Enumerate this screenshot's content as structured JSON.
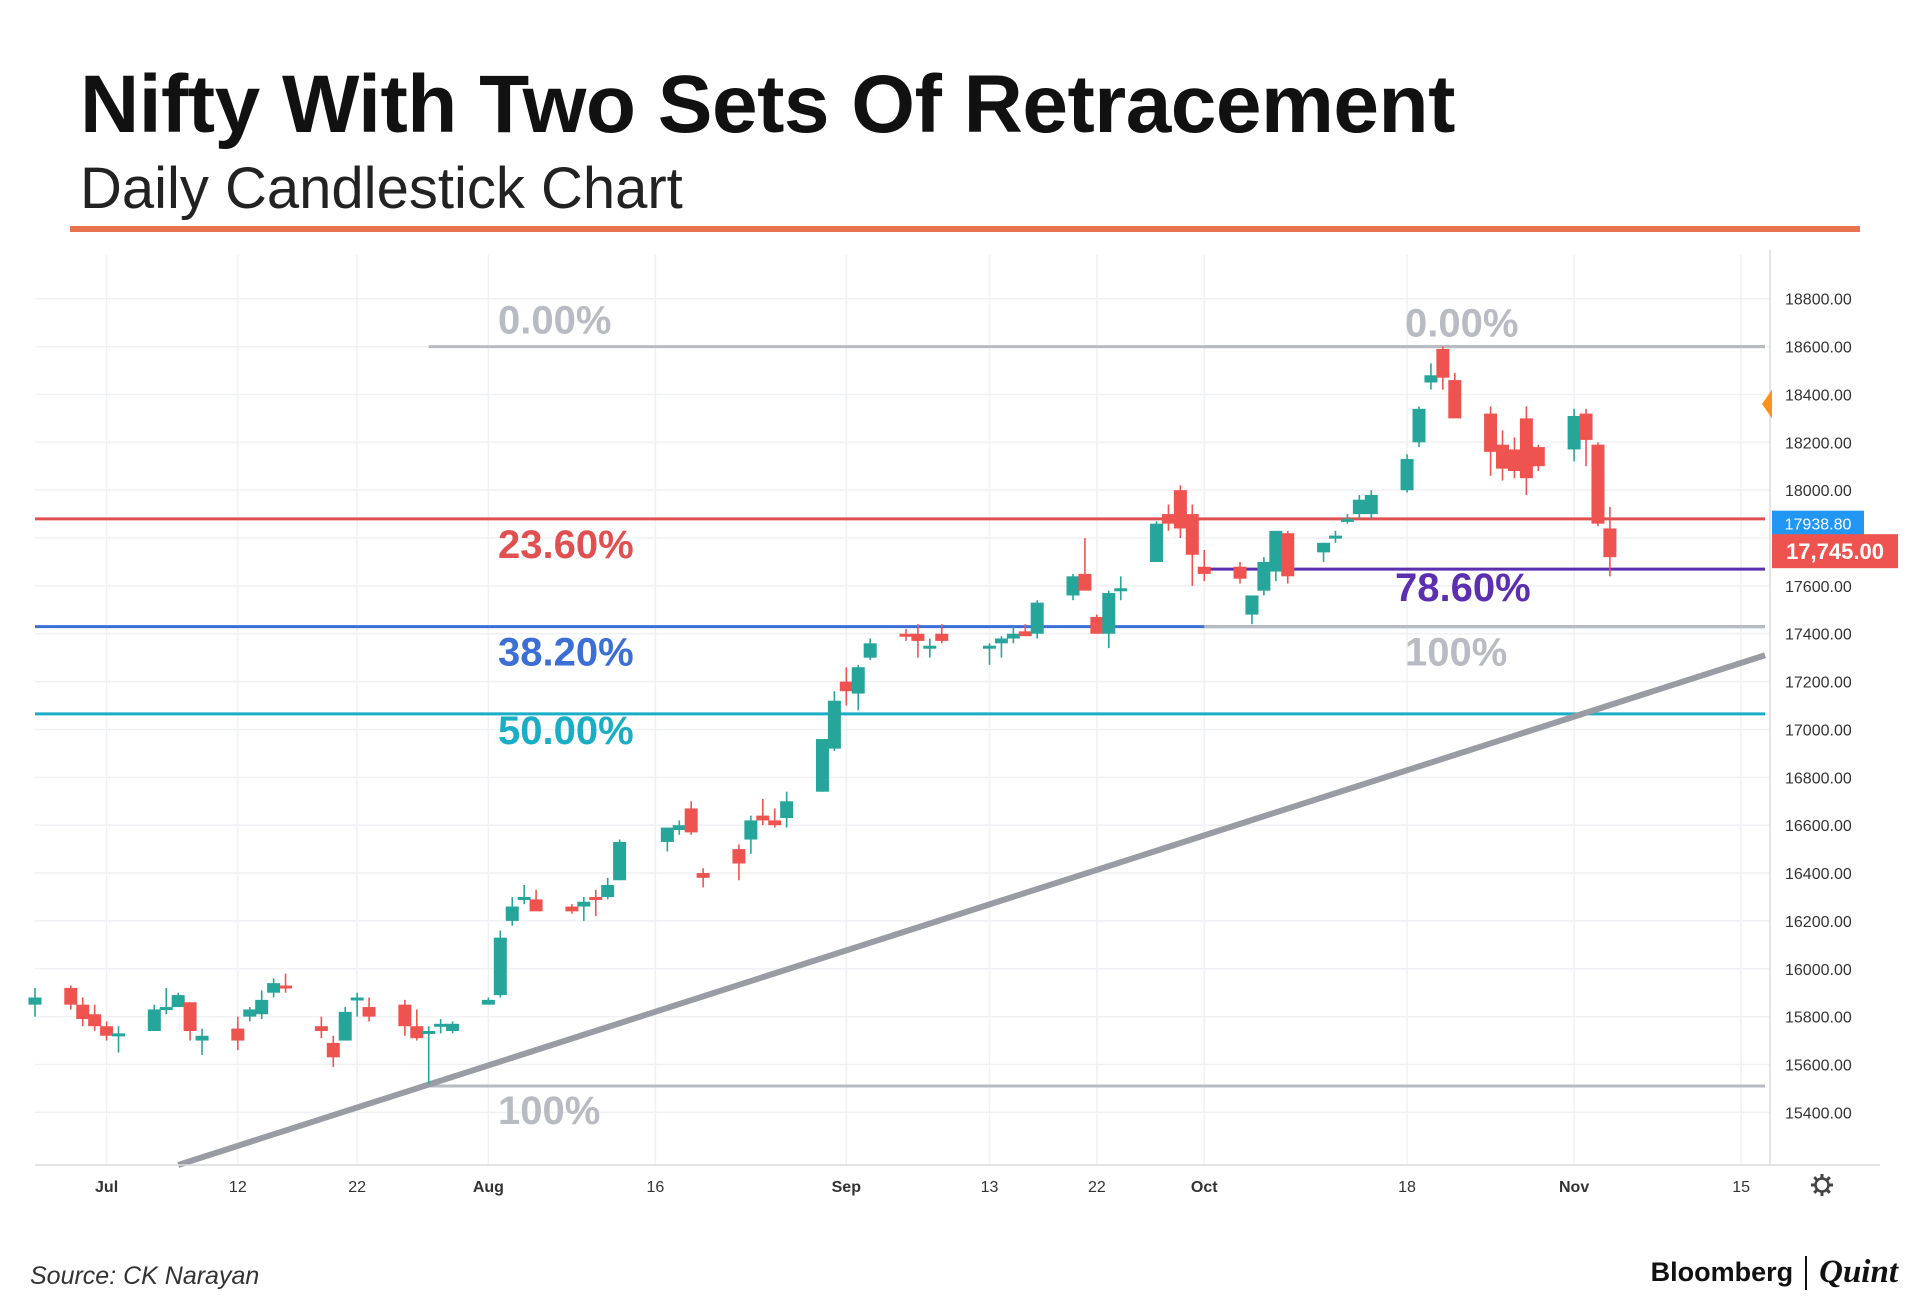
{
  "header": {
    "title": "Nifty With Two Sets Of Retracement",
    "subtitle": "Daily Candlestick Chart",
    "accent_color": "#e8734f"
  },
  "footer": {
    "source": "Source: CK Narayan",
    "brand_left": "Bloomberg",
    "brand_right": "Quint"
  },
  "chart_data": {
    "type": "candlestick",
    "title": "Nifty With Two Sets Of Retracement",
    "subtitle": "Daily Candlestick Chart",
    "x_ticks": [
      {
        "label": "Jul",
        "date": "2021-07-01"
      },
      {
        "label": "12",
        "date": "2021-07-12"
      },
      {
        "label": "22",
        "date": "2021-07-22"
      },
      {
        "label": "Aug",
        "date": "2021-08-02"
      },
      {
        "label": "16",
        "date": "2021-08-16"
      },
      {
        "label": "Sep",
        "date": "2021-09-01"
      },
      {
        "label": "13",
        "date": "2021-09-13"
      },
      {
        "label": "22",
        "date": "2021-09-22"
      },
      {
        "label": "Oct",
        "date": "2021-10-01"
      },
      {
        "label": "18",
        "date": "2021-10-18"
      },
      {
        "label": "Nov",
        "date": "2021-11-01"
      },
      {
        "label": "15",
        "date": "2021-11-15"
      }
    ],
    "x_range": [
      "2021-06-25",
      "2021-11-17"
    ],
    "y_ticks": [
      15400,
      15600,
      15800,
      16000,
      16200,
      16400,
      16600,
      16800,
      17000,
      17200,
      17400,
      17600,
      17800,
      18000,
      18200,
      18400,
      18600,
      18800
    ],
    "y_tick_labels": [
      "15400.00",
      "15600.00",
      "15800.00",
      "16000.00",
      "16200.00",
      "16400.00",
      "16600.00",
      "16800.00",
      "17000.00",
      "17200.00",
      "17400.00",
      "17600.00",
      "17800.00",
      "18000.00",
      "18200.00",
      "18400.00",
      "18600.00",
      "18800.00"
    ],
    "ylim": [
      15180,
      18920
    ],
    "grid": true,
    "up_color": "#26a69a",
    "down_color": "#ef5350",
    "candles": [
      {
        "date": "2021-06-25",
        "o": 15850,
        "h": 15920,
        "l": 15800,
        "c": 15880
      },
      {
        "date": "2021-06-28",
        "o": 15920,
        "h": 15930,
        "l": 15830,
        "c": 15850
      },
      {
        "date": "2021-06-29",
        "o": 15850,
        "h": 15880,
        "l": 15760,
        "c": 15790
      },
      {
        "date": "2021-06-30",
        "o": 15810,
        "h": 15850,
        "l": 15740,
        "c": 15760
      },
      {
        "date": "2021-07-01",
        "o": 15760,
        "h": 15780,
        "l": 15700,
        "c": 15720
      },
      {
        "date": "2021-07-02",
        "o": 15730,
        "h": 15760,
        "l": 15650,
        "c": 15730
      },
      {
        "date": "2021-07-05",
        "o": 15740,
        "h": 15850,
        "l": 15740,
        "c": 15830
      },
      {
        "date": "2021-07-06",
        "o": 15830,
        "h": 15920,
        "l": 15810,
        "c": 15840
      },
      {
        "date": "2021-07-07",
        "o": 15840,
        "h": 15900,
        "l": 15840,
        "c": 15890
      },
      {
        "date": "2021-07-08",
        "o": 15860,
        "h": 15860,
        "l": 15700,
        "c": 15740
      },
      {
        "date": "2021-07-09",
        "o": 15700,
        "h": 15750,
        "l": 15640,
        "c": 15720
      },
      {
        "date": "2021-07-12",
        "o": 15750,
        "h": 15800,
        "l": 15660,
        "c": 15700
      },
      {
        "date": "2021-07-13",
        "o": 15800,
        "h": 15840,
        "l": 15780,
        "c": 15830
      },
      {
        "date": "2021-07-14",
        "o": 15810,
        "h": 15910,
        "l": 15790,
        "c": 15870
      },
      {
        "date": "2021-07-15",
        "o": 15900,
        "h": 15960,
        "l": 15880,
        "c": 15940
      },
      {
        "date": "2021-07-16",
        "o": 15930,
        "h": 15980,
        "l": 15900,
        "c": 15920
      },
      {
        "date": "2021-07-19",
        "o": 15760,
        "h": 15800,
        "l": 15710,
        "c": 15740
      },
      {
        "date": "2021-07-20",
        "o": 15690,
        "h": 15720,
        "l": 15590,
        "c": 15630
      },
      {
        "date": "2021-07-21",
        "o": 15700,
        "h": 15840,
        "l": 15700,
        "c": 15820
      },
      {
        "date": "2021-07-22",
        "o": 15880,
        "h": 15900,
        "l": 15800,
        "c": 15880
      },
      {
        "date": "2021-07-23",
        "o": 15840,
        "h": 15880,
        "l": 15780,
        "c": 15800
      },
      {
        "date": "2021-07-26",
        "o": 15850,
        "h": 15870,
        "l": 15720,
        "c": 15760
      },
      {
        "date": "2021-07-27",
        "o": 15760,
        "h": 15830,
        "l": 15700,
        "c": 15710
      },
      {
        "date": "2021-07-28",
        "o": 15740,
        "h": 15760,
        "l": 15520,
        "c": 15740
      },
      {
        "date": "2021-07-29",
        "o": 15760,
        "h": 15790,
        "l": 15730,
        "c": 15770
      },
      {
        "date": "2021-07-30",
        "o": 15740,
        "h": 15780,
        "l": 15730,
        "c": 15770
      },
      {
        "date": "2021-08-02",
        "o": 15850,
        "h": 15880,
        "l": 15850,
        "c": 15870
      },
      {
        "date": "2021-08-03",
        "o": 15890,
        "h": 16160,
        "l": 15880,
        "c": 16130
      },
      {
        "date": "2021-08-04",
        "o": 16200,
        "h": 16300,
        "l": 16180,
        "c": 16260
      },
      {
        "date": "2021-08-05",
        "o": 16290,
        "h": 16350,
        "l": 16270,
        "c": 16300
      },
      {
        "date": "2021-08-06",
        "o": 16290,
        "h": 16330,
        "l": 16250,
        "c": 16240
      },
      {
        "date": "2021-08-09",
        "o": 16260,
        "h": 16270,
        "l": 16230,
        "c": 16240
      },
      {
        "date": "2021-08-10",
        "o": 16260,
        "h": 16300,
        "l": 16200,
        "c": 16280
      },
      {
        "date": "2021-08-11",
        "o": 16300,
        "h": 16330,
        "l": 16220,
        "c": 16290
      },
      {
        "date": "2021-08-12",
        "o": 16300,
        "h": 16380,
        "l": 16290,
        "c": 16350
      },
      {
        "date": "2021-08-13",
        "o": 16370,
        "h": 16540,
        "l": 16370,
        "c": 16530
      },
      {
        "date": "2021-08-17",
        "o": 16530,
        "h": 16590,
        "l": 16490,
        "c": 16590
      },
      {
        "date": "2021-08-18",
        "o": 16580,
        "h": 16620,
        "l": 16560,
        "c": 16600
      },
      {
        "date": "2021-08-19",
        "o": 16670,
        "h": 16700,
        "l": 16560,
        "c": 16570
      },
      {
        "date": "2021-08-20",
        "o": 16400,
        "h": 16420,
        "l": 16340,
        "c": 16380
      },
      {
        "date": "2021-08-23",
        "o": 16500,
        "h": 16520,
        "l": 16370,
        "c": 16440
      },
      {
        "date": "2021-08-24",
        "o": 16540,
        "h": 16640,
        "l": 16480,
        "c": 16620
      },
      {
        "date": "2021-08-25",
        "o": 16640,
        "h": 16710,
        "l": 16600,
        "c": 16620
      },
      {
        "date": "2021-08-26",
        "o": 16620,
        "h": 16670,
        "l": 16590,
        "c": 16600
      },
      {
        "date": "2021-08-27",
        "o": 16630,
        "h": 16740,
        "l": 16590,
        "c": 16700
      },
      {
        "date": "2021-08-30",
        "o": 16740,
        "h": 16960,
        "l": 16740,
        "c": 16960
      },
      {
        "date": "2021-08-31",
        "o": 16920,
        "h": 17160,
        "l": 16910,
        "c": 17120
      },
      {
        "date": "2021-09-01",
        "o": 17200,
        "h": 17260,
        "l": 17100,
        "c": 17160
      },
      {
        "date": "2021-09-02",
        "o": 17150,
        "h": 17270,
        "l": 17080,
        "c": 17260
      },
      {
        "date": "2021-09-03",
        "o": 17300,
        "h": 17380,
        "l": 17290,
        "c": 17360
      },
      {
        "date": "2021-09-06",
        "o": 17400,
        "h": 17420,
        "l": 17370,
        "c": 17390
      },
      {
        "date": "2021-09-07",
        "o": 17400,
        "h": 17440,
        "l": 17300,
        "c": 17370
      },
      {
        "date": "2021-09-08",
        "o": 17350,
        "h": 17380,
        "l": 17300,
        "c": 17350
      },
      {
        "date": "2021-09-09",
        "o": 17400,
        "h": 17440,
        "l": 17360,
        "c": 17370
      },
      {
        "date": "2021-09-13",
        "o": 17340,
        "h": 17360,
        "l": 17270,
        "c": 17350
      },
      {
        "date": "2021-09-14",
        "o": 17360,
        "h": 17390,
        "l": 17300,
        "c": 17380
      },
      {
        "date": "2021-09-15",
        "o": 17380,
        "h": 17430,
        "l": 17360,
        "c": 17400
      },
      {
        "date": "2021-09-16",
        "o": 17410,
        "h": 17440,
        "l": 17390,
        "c": 17390
      },
      {
        "date": "2021-09-17",
        "o": 17400,
        "h": 17540,
        "l": 17380,
        "c": 17530
      },
      {
        "date": "2021-09-20",
        "o": 17560,
        "h": 17650,
        "l": 17540,
        "c": 17640
      },
      {
        "date": "2021-09-21",
        "o": 17650,
        "h": 17800,
        "l": 17610,
        "c": 17580
      },
      {
        "date": "2021-09-22",
        "o": 17470,
        "h": 17480,
        "l": 17400,
        "c": 17400
      },
      {
        "date": "2021-09-23",
        "o": 17400,
        "h": 17580,
        "l": 17340,
        "c": 17570
      },
      {
        "date": "2021-09-24",
        "o": 17580,
        "h": 17640,
        "l": 17540,
        "c": 17590
      },
      {
        "date": "2021-09-27",
        "o": 17700,
        "h": 17870,
        "l": 17700,
        "c": 17860
      },
      {
        "date": "2021-09-28",
        "o": 17900,
        "h": 17940,
        "l": 17830,
        "c": 17860
      },
      {
        "date": "2021-09-29",
        "o": 18000,
        "h": 18020,
        "l": 17800,
        "c": 17840
      },
      {
        "date": "2021-09-30",
        "o": 17900,
        "h": 17940,
        "l": 17600,
        "c": 17730
      },
      {
        "date": "2021-10-01",
        "o": 17680,
        "h": 17750,
        "l": 17620,
        "c": 17650
      },
      {
        "date": "2021-10-04",
        "o": 17680,
        "h": 17700,
        "l": 17610,
        "c": 17630
      },
      {
        "date": "2021-10-05",
        "o": 17480,
        "h": 17560,
        "l": 17440,
        "c": 17560
      },
      {
        "date": "2021-10-06",
        "o": 17580,
        "h": 17720,
        "l": 17560,
        "c": 17700
      },
      {
        "date": "2021-10-07",
        "o": 17660,
        "h": 17820,
        "l": 17620,
        "c": 17830
      },
      {
        "date": "2021-10-08",
        "o": 17820,
        "h": 17830,
        "l": 17610,
        "c": 17640
      },
      {
        "date": "2021-10-11",
        "o": 17740,
        "h": 17780,
        "l": 17700,
        "c": 17780
      },
      {
        "date": "2021-10-12",
        "o": 17800,
        "h": 17830,
        "l": 17780,
        "c": 17810
      },
      {
        "date": "2021-10-13",
        "o": 17880,
        "h": 17900,
        "l": 17860,
        "c": 17880
      },
      {
        "date": "2021-10-14",
        "o": 17900,
        "h": 17980,
        "l": 17880,
        "c": 17960
      },
      {
        "date": "2021-10-15",
        "o": 17900,
        "h": 18000,
        "l": 17880,
        "c": 17980
      },
      {
        "date": "2021-10-18",
        "o": 18000,
        "h": 18150,
        "l": 17990,
        "c": 18130
      },
      {
        "date": "2021-10-19",
        "o": 18200,
        "h": 18350,
        "l": 18180,
        "c": 18340
      },
      {
        "date": "2021-10-20",
        "o": 18450,
        "h": 18530,
        "l": 18420,
        "c": 18480
      },
      {
        "date": "2021-10-21",
        "o": 18590,
        "h": 18600,
        "l": 18420,
        "c": 18470
      },
      {
        "date": "2021-10-22",
        "o": 18460,
        "h": 18490,
        "l": 18320,
        "c": 18300
      },
      {
        "date": "2021-10-25",
        "o": 18320,
        "h": 18350,
        "l": 18060,
        "c": 18160
      },
      {
        "date": "2021-10-26",
        "o": 18190,
        "h": 18250,
        "l": 18040,
        "c": 18090
      },
      {
        "date": "2021-10-27",
        "o": 18170,
        "h": 18220,
        "l": 18050,
        "c": 18080
      },
      {
        "date": "2021-10-28",
        "o": 18300,
        "h": 18350,
        "l": 17980,
        "c": 18050
      },
      {
        "date": "2021-10-29",
        "o": 18180,
        "h": 18190,
        "l": 18080,
        "c": 18100
      },
      {
        "date": "2021-11-01",
        "o": 18170,
        "h": 18340,
        "l": 18120,
        "c": 18310
      },
      {
        "date": "2021-11-02",
        "o": 18320,
        "h": 18340,
        "l": 18100,
        "c": 18210
      },
      {
        "date": "2021-11-03",
        "o": 18190,
        "h": 18200,
        "l": 17850,
        "c": 17860
      },
      {
        "date": "2021-11-04",
        "o": 17840,
        "h": 17930,
        "l": 17640,
        "c": 17720
      }
    ],
    "fib_levels": [
      {
        "label": "0.00%",
        "value": 18600,
        "start": "2021-07-28",
        "end": "2021-11-17",
        "color": "#b9bbc2"
      },
      {
        "label": "23.60%",
        "value": 17880,
        "start": "2021-06-25",
        "end": "2021-11-17",
        "color": "#e05050"
      },
      {
        "label": "38.20%",
        "value": 17430,
        "start": "2021-06-25",
        "end": "2021-11-17",
        "color": "#3b6fd6"
      },
      {
        "label": "50.00%",
        "value": 17065,
        "start": "2021-06-25",
        "end": "2021-11-17",
        "color": "#1aaec6"
      },
      {
        "label": "100%",
        "value": 15510,
        "start": "2021-07-28",
        "end": "2021-11-17",
        "color": "#b9bbc2"
      },
      {
        "label": "0.00%",
        "value": 18600,
        "start": "2021-10-01",
        "end": "2021-11-17",
        "color": "#b9bbc2"
      },
      {
        "label": "78.60%",
        "value": 17670,
        "start": "2021-10-01",
        "end": "2021-11-17",
        "color": "#5b2fb0"
      },
      {
        "label": "100%",
        "value": 17430,
        "start": "2021-10-01",
        "end": "2021-11-17",
        "color": "#b9bbc2"
      }
    ],
    "trendline": {
      "start": {
        "date": "2021-07-07",
        "value": 15180
      },
      "end": {
        "date": "2021-11-17",
        "value": 17310
      },
      "color": "#9a9ca3"
    },
    "price_tags": [
      {
        "label": "17938.80",
        "value": 17860,
        "color": "#2196f3"
      },
      {
        "label": "17,745.00",
        "value": 17745,
        "color": "#ef5350"
      }
    ],
    "settings_icon": "gear-icon"
  }
}
